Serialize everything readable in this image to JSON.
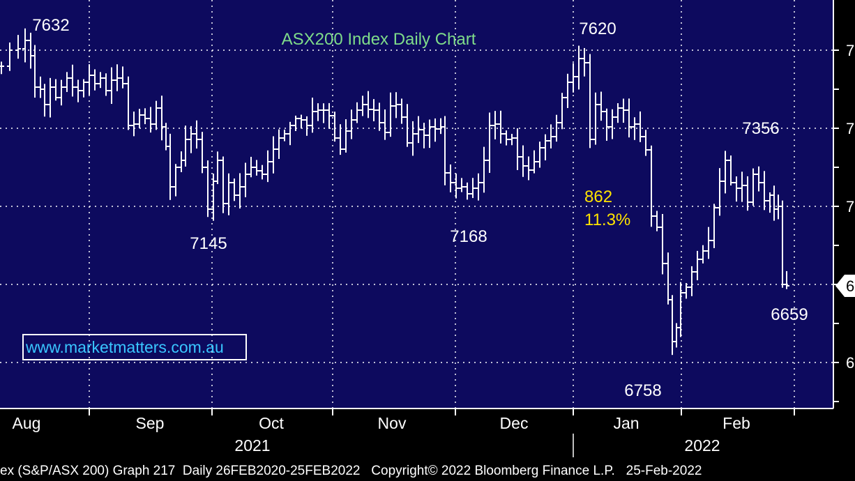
{
  "colors": {
    "background": "#000000",
    "plot_background": "#0d0a5e",
    "bars": "#ffffff",
    "grid": "#ffffff",
    "title": "#7fdc8a",
    "annotation_highlight": "#ffe300",
    "watermark": "#39c6ff"
  },
  "chart_data": {
    "type": "ohlc",
    "title": "ASX200 Index Daily Chart",
    "watermark": "www.marketmatters.com.au",
    "month_labels": [
      "Aug",
      "Sep",
      "Oct",
      "Nov",
      "Dec",
      "Jan",
      "Feb"
    ],
    "year_labels": [
      "2021",
      "2022"
    ],
    "y_tick_labels": [
      "7",
      "7",
      "7",
      "6",
      "6"
    ],
    "last_value_tag": "6",
    "annotations": {
      "high_aug": "7632",
      "low_sep": "7145",
      "low_nov": "7168",
      "high_dec": "7620",
      "low_jan": "6758",
      "high_feb": "7356",
      "last_low": "6659",
      "drop_points": "862",
      "drop_percent": "11.3%"
    },
    "grid": true,
    "legend": "none",
    "footer": "ex (S&P/ASX 200) Graph 217  Daily 26FEB2020-25FEB2022   Copyright© 2022 Bloomberg Finance L.P.   25-Feb-2022"
  }
}
